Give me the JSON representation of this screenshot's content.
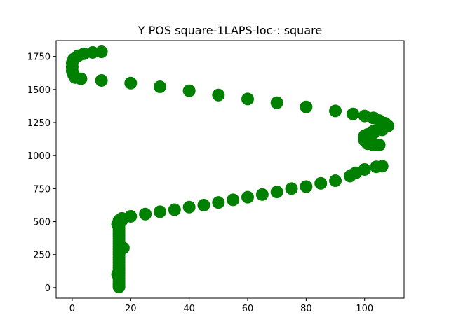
{
  "chart_data": {
    "type": "scatter",
    "title": "Y POS square-1LAPS-loc-: square",
    "xlabel": "",
    "ylabel": "",
    "xlim": [
      -5.5,
      113.5
    ],
    "ylim": [
      -80,
      1870
    ],
    "x_ticks": [
      0,
      20,
      40,
      60,
      80,
      100
    ],
    "y_ticks": [
      0,
      250,
      500,
      750,
      1000,
      1250,
      1500,
      1750
    ],
    "grid": false,
    "legend": "none",
    "series": [
      {
        "color": "#008000",
        "points": [
          [
            10,
            1785
          ],
          [
            7,
            1780
          ],
          [
            4,
            1770
          ],
          [
            2,
            1755
          ],
          [
            0.5,
            1730
          ],
          [
            0,
            1700
          ],
          [
            0,
            1670
          ],
          [
            0,
            1640
          ],
          [
            0.5,
            1610
          ],
          [
            1,
            1590
          ],
          [
            3,
            1580
          ],
          [
            10,
            1568
          ],
          [
            20,
            1548
          ],
          [
            30,
            1520
          ],
          [
            40,
            1490
          ],
          [
            50,
            1458
          ],
          [
            60,
            1428
          ],
          [
            70,
            1400
          ],
          [
            80,
            1368
          ],
          [
            90,
            1338
          ],
          [
            96,
            1315
          ],
          [
            100,
            1300
          ],
          [
            103,
            1285
          ],
          [
            105,
            1265
          ],
          [
            107,
            1245
          ],
          [
            108,
            1225
          ],
          [
            106,
            1205
          ],
          [
            103,
            1185
          ],
          [
            101,
            1160
          ],
          [
            100,
            1140
          ],
          [
            100,
            1120
          ],
          [
            101,
            1100
          ],
          [
            103,
            1085
          ],
          [
            105,
            1080
          ],
          [
            103,
            1080
          ],
          [
            101,
            1090
          ],
          [
            100,
            1115
          ],
          [
            100,
            1138
          ],
          [
            100,
            1150
          ],
          [
            103,
            1170
          ],
          [
            106,
            1195
          ],
          [
            106,
            920
          ],
          [
            104,
            915
          ],
          [
            100,
            895
          ],
          [
            97,
            870
          ],
          [
            95,
            845
          ],
          [
            90,
            810
          ],
          [
            85,
            790
          ],
          [
            80,
            765
          ],
          [
            75,
            750
          ],
          [
            70,
            725
          ],
          [
            65,
            705
          ],
          [
            60,
            685
          ],
          [
            55,
            665
          ],
          [
            50,
            645
          ],
          [
            45,
            625
          ],
          [
            40,
            610
          ],
          [
            35,
            590
          ],
          [
            30,
            575
          ],
          [
            25,
            557
          ],
          [
            20,
            540
          ],
          [
            17,
            525
          ],
          [
            16,
            510
          ],
          [
            16,
            490
          ],
          [
            16,
            470
          ],
          [
            16,
            450
          ],
          [
            16,
            430
          ],
          [
            16,
            410
          ],
          [
            16,
            390
          ],
          [
            16,
            370
          ],
          [
            16,
            350
          ],
          [
            16,
            330
          ],
          [
            16,
            310
          ],
          [
            16,
            290
          ],
          [
            16,
            270
          ],
          [
            16,
            250
          ],
          [
            16,
            230
          ],
          [
            16,
            210
          ],
          [
            16,
            190
          ],
          [
            16,
            170
          ],
          [
            16,
            150
          ],
          [
            16,
            130
          ],
          [
            16,
            110
          ],
          [
            16,
            90
          ],
          [
            16,
            70
          ],
          [
            16,
            50
          ],
          [
            16,
            30
          ],
          [
            16,
            15
          ],
          [
            16,
            5
          ],
          [
            17,
            510
          ],
          [
            15.5,
            480
          ],
          [
            17.5,
            300
          ],
          [
            15.5,
            100
          ]
        ]
      }
    ]
  }
}
